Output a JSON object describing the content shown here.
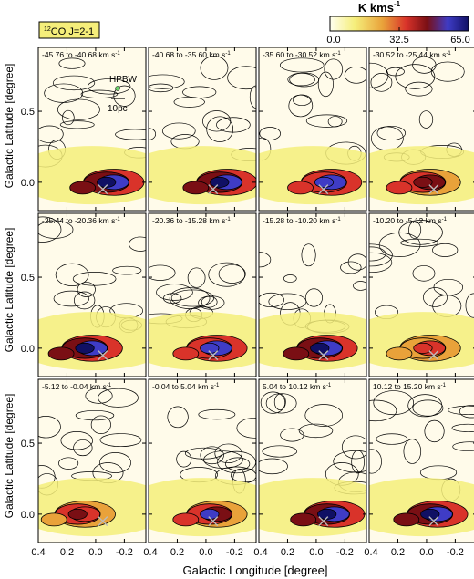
{
  "figure": {
    "line_label": "CO J=2-1",
    "line_label_isotope": "12",
    "colorbar_title": "K kms",
    "colorbar_title_sup": "-1",
    "colorbar_ticks": [
      "0.0",
      "32.5",
      "65.0"
    ],
    "colorbar_range": [
      0.0,
      65.0
    ],
    "colorbar_colors": [
      "#fffff0",
      "#f5ee7a",
      "#e9a23a",
      "#d9332a",
      "#7a0f14",
      "#3f3cc6",
      "#101064"
    ],
    "xlabel": "Galactic Longitude [degree]",
    "ylabel": "Galactic Latitude [degree]",
    "hpbw_label": "HPBW",
    "scale_label": "10pc",
    "velocity_unit": "km s",
    "velocity_unit_sup": "-1"
  },
  "chart_data": {
    "type": "heatmap",
    "subtype": "velocity-channel maps (4 x 3 grid)",
    "value_unit": "K km s^-1",
    "value_range": [
      0.0,
      65.0
    ],
    "xlabel": "Galactic Longitude [degree]",
    "ylabel": "Galactic Latitude [degree]",
    "xlim": [
      0.4,
      -0.35
    ],
    "ylim": [
      -0.2,
      0.95
    ],
    "xticks": [
      0.4,
      0.2,
      0.0,
      -0.2
    ],
    "xtick_labels": [
      "0.4",
      "0.2",
      "0.0",
      "-0.2"
    ],
    "yticks": [
      0.0,
      0.5
    ],
    "ytick_labels": [
      "0.0",
      "0.5"
    ],
    "panels": [
      {
        "v_from": "-45.76",
        "v_to": "-40.68",
        "peak": 62,
        "hot_l": -0.1
      },
      {
        "v_from": "-40.68",
        "v_to": "-35.60",
        "peak": 60,
        "hot_l": -0.12
      },
      {
        "v_from": "-35.60",
        "v_to": "-30.52",
        "peak": 55,
        "hot_l": -0.08
      },
      {
        "v_from": "-30.52",
        "v_to": "-25.44",
        "peak": 45,
        "hot_l": 0.0
      },
      {
        "v_from": "-25.44",
        "v_to": "-20.36",
        "peak": 62,
        "hot_l": 0.05
      },
      {
        "v_from": "-20.36",
        "v_to": "-15.28",
        "peak": 55,
        "hot_l": -0.05
      },
      {
        "v_from": "-15.28",
        "v_to": "-10.20",
        "peak": 60,
        "hot_l": -0.05
      },
      {
        "v_from": "-10.20",
        "v_to": "-5.12",
        "peak": 35,
        "hot_l": 0.0
      },
      {
        "v_from": "-5.12",
        "v_to": "-0.04",
        "peak": 40,
        "hot_l": 0.1
      },
      {
        "v_from": "-0.04",
        "v_to": "5.04",
        "peak": 50,
        "hot_l": -0.05
      },
      {
        "v_from": "5.04",
        "v_to": "10.12",
        "peak": 60,
        "hot_l": -0.1
      },
      {
        "v_from": "10.12",
        "v_to": "15.20",
        "peak": 62,
        "hot_l": -0.05
      }
    ]
  }
}
